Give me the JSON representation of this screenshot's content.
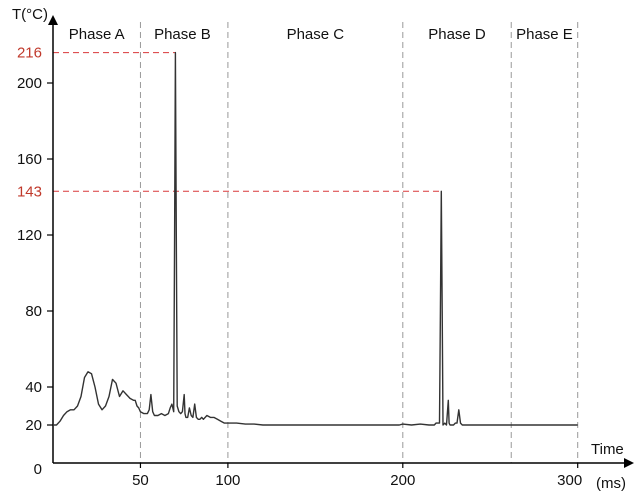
{
  "chart_data": {
    "type": "line",
    "title": "",
    "xlabel": "Time",
    "xunit": "(ms)",
    "ylabel": "T(°C)",
    "xlim": [
      0,
      300
    ],
    "ylim": [
      0,
      230
    ],
    "x_ticks": [
      {
        "value": 50,
        "label": "50"
      },
      {
        "value": 100,
        "label": "100"
      },
      {
        "value": 200,
        "label": "200"
      },
      {
        "value": 300,
        "label": "300"
      }
    ],
    "y_ticks": [
      {
        "value": 0,
        "label": "0"
      },
      {
        "value": 20,
        "label": "20"
      },
      {
        "value": 40,
        "label": "40"
      },
      {
        "value": 80,
        "label": "80"
      },
      {
        "value": 120,
        "label": "120"
      },
      {
        "value": 160,
        "label": "160"
      },
      {
        "value": 200,
        "label": "200"
      }
    ],
    "phase_boundaries": [
      50,
      100,
      200,
      262,
      300
    ],
    "phases": [
      {
        "label": "Phase A",
        "center": 25
      },
      {
        "label": "Phase B",
        "center": 74
      },
      {
        "label": "Phase C",
        "center": 150
      },
      {
        "label": "Phase D",
        "center": 231
      },
      {
        "label": "Phase E",
        "center": 281
      }
    ],
    "peaks": [
      {
        "label": "216",
        "x": 70,
        "y": 216
      },
      {
        "label": "143",
        "x": 222,
        "y": 143
      }
    ],
    "series": [
      {
        "color": "#333333",
        "x": [
          0,
          2,
          4,
          6,
          8,
          10,
          12,
          14,
          16,
          18,
          20,
          22,
          24,
          26,
          28,
          30,
          32,
          34,
          36,
          38,
          40,
          42,
          44,
          46,
          47,
          48,
          49,
          50,
          52,
          54,
          55,
          56,
          57,
          58,
          60,
          62,
          64,
          66,
          67,
          68,
          69,
          69.5,
          70,
          70.5,
          71,
          72,
          73,
          74,
          75,
          75.5,
          76,
          77,
          78,
          79,
          80,
          81,
          82,
          83,
          84,
          85,
          86,
          88,
          90,
          92,
          94,
          96,
          98,
          100,
          105,
          110,
          115,
          120,
          125,
          130,
          140,
          150,
          160,
          170,
          180,
          190,
          198,
          200,
          205,
          210,
          215,
          218,
          219,
          220,
          221,
          221.5,
          222,
          222.5,
          223,
          224,
          225,
          226,
          226.5,
          227,
          228,
          229,
          230,
          231,
          232,
          233,
          234,
          236,
          240,
          250,
          260,
          270,
          280,
          290,
          300
        ],
        "y": [
          20,
          20,
          22,
          25,
          27,
          28,
          28,
          30,
          35,
          45,
          48,
          47,
          40,
          31,
          28,
          30,
          35,
          44,
          42,
          35,
          38,
          36,
          34,
          33,
          33,
          30,
          29,
          27,
          26,
          26,
          28,
          36,
          27,
          25,
          25,
          26,
          25,
          26,
          29,
          31,
          27,
          120,
          216,
          120,
          30,
          27,
          26,
          27,
          36,
          26,
          24,
          24,
          29,
          25,
          24,
          31,
          24,
          23,
          23,
          24,
          23,
          25,
          24,
          24,
          23,
          22,
          21,
          21,
          21,
          20.5,
          20.5,
          20,
          20,
          20,
          20,
          20,
          20,
          20,
          20,
          20,
          20,
          20.5,
          20,
          20.5,
          20,
          20,
          21,
          21,
          21,
          80,
          143,
          80,
          20,
          21,
          20,
          33,
          21,
          20,
          20,
          20,
          21,
          21,
          28,
          21,
          20,
          20,
          20,
          20,
          20,
          20,
          20,
          20,
          20
        ]
      }
    ],
    "grid": false
  }
}
